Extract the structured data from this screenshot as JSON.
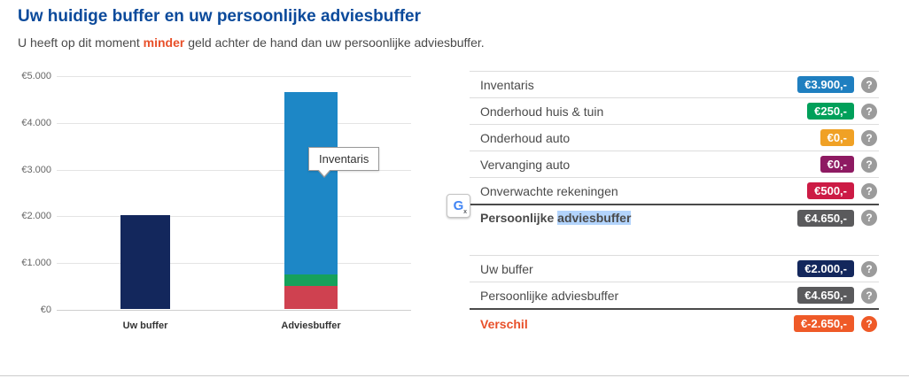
{
  "page": {
    "title": "Uw huidige buffer en uw persoonlijke adviesbuffer",
    "subtitle_prefix": "U heeft op dit moment",
    "subtitle_highlight": "minder",
    "subtitle_suffix": "geld achter de hand dan uw persoonlijke adviesbuffer."
  },
  "colors": {
    "title_blue": "#0b4a9b",
    "emphasis_orange": "#e8502a",
    "selection_highlight": "#b3d4fc",
    "help_circle_gray": "#9b9b9b"
  },
  "chart_data": {
    "type": "bar",
    "stacked": true,
    "categories": [
      "Uw buffer",
      "Adviesbuffer"
    ],
    "ylim": [
      0,
      5000
    ],
    "ytick_labels": [
      "€5.000",
      "€4.000",
      "€3.000",
      "€2.000",
      "€1.000",
      "€0"
    ],
    "grid": true,
    "tooltip_label": "Inventaris",
    "bars": [
      {
        "category": "Uw buffer",
        "total": 2000,
        "segments": [
          {
            "name": "Uw buffer",
            "value": 2000,
            "color": "#13275c"
          }
        ]
      },
      {
        "category": "Adviesbuffer",
        "total": 4650,
        "segments": [
          {
            "name": "Onverwachte rekeningen",
            "value": 500,
            "color": "#cf4150"
          },
          {
            "name": "Vervanging auto",
            "value": 0,
            "color": "#8e1a62"
          },
          {
            "name": "Onderhoud auto",
            "value": 0,
            "color": "#f0a125"
          },
          {
            "name": "Onderhoud huis & tuin",
            "value": 250,
            "color": "#16a15b"
          },
          {
            "name": "Inventaris",
            "value": 3900,
            "color": "#1d87c6"
          }
        ]
      }
    ]
  },
  "breakdown": {
    "rows": [
      {
        "label": "Inventaris",
        "value": "€3.900,-",
        "color": "#1f7fc0"
      },
      {
        "label": "Onderhoud huis & tuin",
        "value": "€250,-",
        "color": "#00a05a"
      },
      {
        "label": "Onderhoud auto",
        "value": "€0,-",
        "color": "#f0a125"
      },
      {
        "label": "Vervanging auto",
        "value": "€0,-",
        "color": "#8e1a62"
      },
      {
        "label": "Onverwachte rekeningen",
        "value": "€500,-",
        "color": "#cc1b45"
      }
    ],
    "total": {
      "label_prefix": "Persoonlijke",
      "label_highlight": "adviesbuffer",
      "value": "€4.650,-",
      "color": "#5a5a5c"
    }
  },
  "summary": {
    "rows": [
      {
        "label": "Uw buffer",
        "value": "€2.000,-",
        "color": "#13275c"
      },
      {
        "label": "Persoonlijke adviesbuffer",
        "value": "€4.650,-",
        "color": "#5a5a5c"
      }
    ],
    "difference": {
      "label": "Verschil",
      "value": "€-2.650,-",
      "color": "#ef5a28"
    }
  },
  "ui": {
    "help_glyph": "?",
    "translate_letter": "G",
    "translate_sub": "x"
  }
}
